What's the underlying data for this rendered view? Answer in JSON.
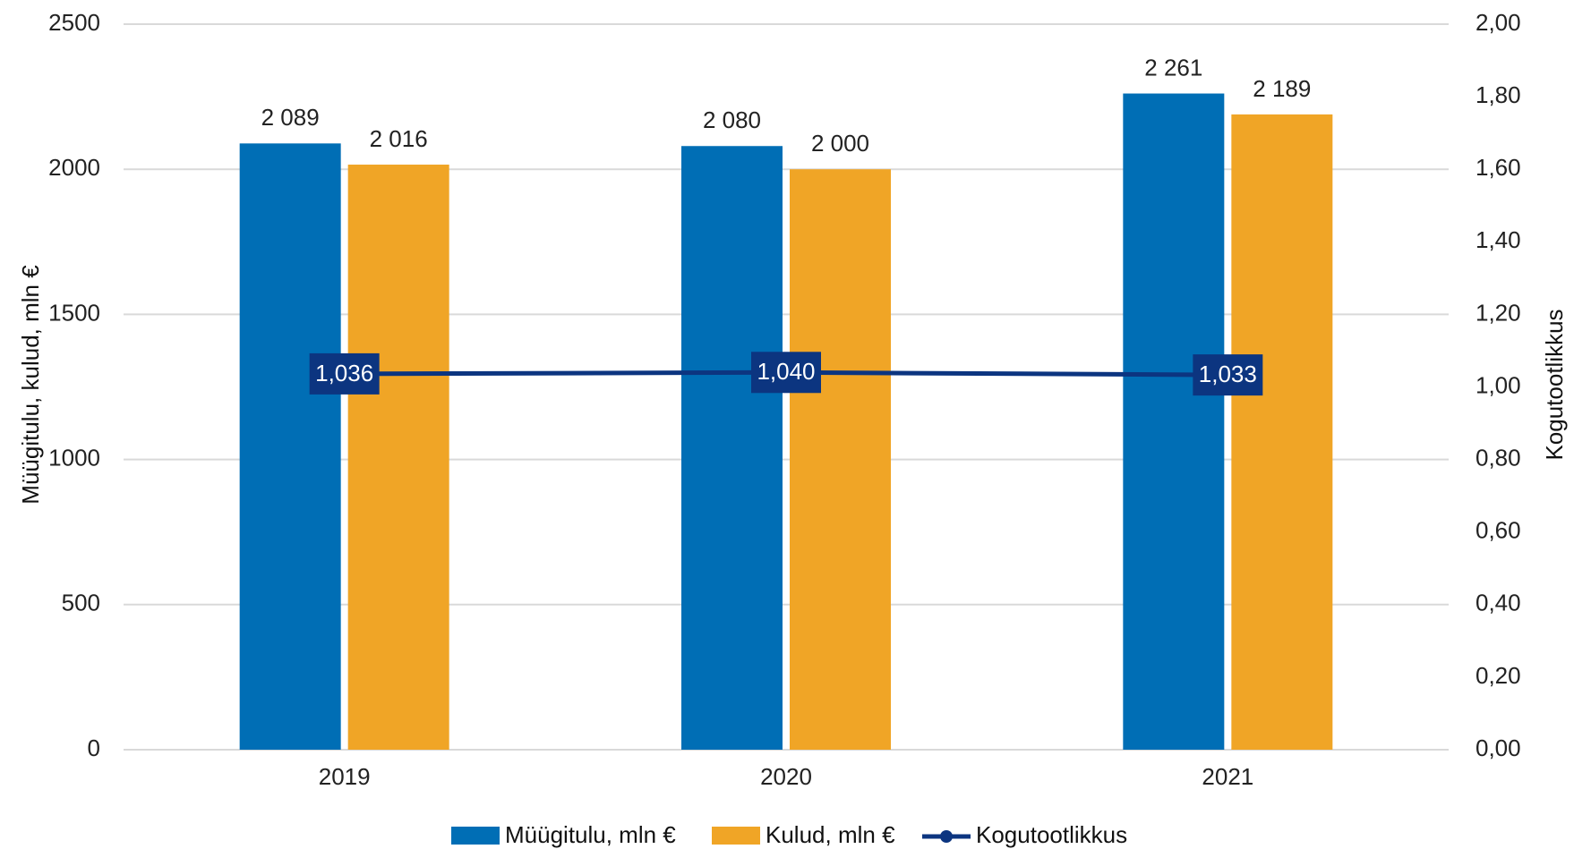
{
  "chart_data": {
    "type": "bar",
    "categories": [
      "2019",
      "2020",
      "2021"
    ],
    "series": [
      {
        "name": "Müügitulu, mln €",
        "kind": "bar",
        "axis": "left",
        "color": "#006EB5",
        "values": [
          2089,
          2080,
          2261
        ],
        "labels": [
          "2 089",
          "2 080",
          "2 261"
        ]
      },
      {
        "name": "Kulud, mln €",
        "kind": "bar",
        "axis": "left",
        "color": "#F0A526",
        "values": [
          2016,
          2000,
          2189
        ],
        "labels": [
          "2 016",
          "2 000",
          "2 189"
        ]
      },
      {
        "name": "Kogutootlikkus",
        "kind": "line",
        "axis": "right",
        "color": "#0C3580",
        "values": [
          1.036,
          1.04,
          1.033
        ],
        "labels": [
          "1,036",
          "1,040",
          "1,033"
        ]
      }
    ],
    "y_left": {
      "label": "Müügitulu, kulud, mln €",
      "range": [
        0,
        2500
      ],
      "ticks": [
        0,
        500,
        1000,
        1500,
        2000,
        2500
      ],
      "tick_labels": [
        "0",
        "500",
        "1000",
        "1500",
        "2000",
        "2500"
      ]
    },
    "y_right": {
      "label": "Kogutootlikkus",
      "range": [
        0,
        2
      ],
      "ticks": [
        0,
        0.2,
        0.4,
        0.6,
        0.8,
        1.0,
        1.2,
        1.4,
        1.6,
        1.8,
        2.0
      ],
      "tick_labels": [
        "0,00",
        "0,20",
        "0,40",
        "0,60",
        "0,80",
        "1,00",
        "1,20",
        "1,40",
        "1,60",
        "1,80",
        "2,00"
      ]
    },
    "grid": true,
    "legend": "bottom",
    "gridline_color": "#D9D9D9"
  }
}
